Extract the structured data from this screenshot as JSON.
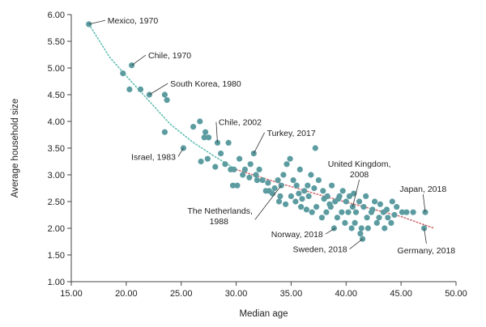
{
  "chart_data": {
    "type": "scatter",
    "title": "",
    "xlabel": "Median age",
    "ylabel": "Average household size",
    "xlim": [
      15,
      50
    ],
    "ylim": [
      1,
      6
    ],
    "x_ticks": [
      "15.00",
      "20.00",
      "25.00",
      "30.00",
      "35.00",
      "40.00",
      "45.00",
      "50.00"
    ],
    "y_ticks": [
      "1.00",
      "1.50",
      "2.00",
      "2.50",
      "3.00",
      "3.50",
      "4.00",
      "4.50",
      "5.00",
      "5.50",
      "6.00"
    ],
    "grid": false,
    "colors": {
      "point": "#5c9ca1",
      "trend_early": "#5bbcae",
      "trend_late": "#d0666b",
      "axis": "#444444",
      "annotation_line": "#333333"
    },
    "trendlines": [
      {
        "style": "dotted",
        "color": "#5bbcae",
        "points": [
          [
            16.6,
            5.82
          ],
          [
            18.5,
            5.2
          ],
          [
            20,
            4.85
          ],
          [
            22,
            4.4
          ],
          [
            24,
            3.95
          ],
          [
            26,
            3.62
          ],
          [
            28,
            3.35
          ],
          [
            30,
            3.1
          ]
        ]
      },
      {
        "style": "dotted",
        "color": "#d0666b",
        "points": [
          [
            30,
            3.1
          ],
          [
            34,
            2.84
          ],
          [
            38,
            2.6
          ],
          [
            42,
            2.38
          ],
          [
            45,
            2.22
          ],
          [
            48,
            2.0
          ]
        ]
      }
    ],
    "points": [
      [
        16.6,
        5.82
      ],
      [
        19.7,
        4.9
      ],
      [
        20.5,
        5.05
      ],
      [
        20.3,
        4.6
      ],
      [
        21.3,
        4.6
      ],
      [
        22.1,
        4.5
      ],
      [
        23.5,
        4.5
      ],
      [
        23.7,
        4.4
      ],
      [
        23.5,
        3.8
      ],
      [
        25.2,
        3.5
      ],
      [
        26.1,
        3.9
      ],
      [
        26.7,
        4.0
      ],
      [
        27.2,
        3.8
      ],
      [
        27.5,
        3.7
      ],
      [
        28.3,
        3.6
      ],
      [
        27.1,
        3.7
      ],
      [
        26.8,
        3.25
      ],
      [
        27.4,
        3.3
      ],
      [
        28.1,
        3.15
      ],
      [
        28.6,
        3.4
      ],
      [
        29.0,
        3.2
      ],
      [
        29.5,
        3.1
      ],
      [
        29.8,
        3.1
      ],
      [
        29.3,
        3.6
      ],
      [
        30.3,
        3.3
      ],
      [
        30.6,
        3.0
      ],
      [
        29.7,
        2.8
      ],
      [
        30.1,
        2.8
      ],
      [
        31.3,
        3.2
      ],
      [
        31.6,
        3.4
      ],
      [
        31.8,
        3.0
      ],
      [
        32.1,
        3.1
      ],
      [
        32.4,
        2.9
      ],
      [
        32.7,
        2.7
      ],
      [
        33.0,
        2.7
      ],
      [
        33.3,
        2.65
      ],
      [
        33.8,
        2.9
      ],
      [
        34.1,
        2.8
      ],
      [
        34.3,
        3.0
      ],
      [
        34.6,
        3.2
      ],
      [
        34.9,
        3.3
      ],
      [
        35.2,
        2.9
      ],
      [
        35.5,
        2.8
      ],
      [
        35.8,
        3.1
      ],
      [
        36.2,
        2.7
      ],
      [
        36.5,
        2.8
      ],
      [
        36.8,
        3.0
      ],
      [
        37.2,
        3.5
      ],
      [
        37.5,
        2.9
      ],
      [
        37.9,
        2.7
      ],
      [
        38.3,
        2.6
      ],
      [
        38.7,
        2.8
      ],
      [
        39.0,
        2.5
      ],
      [
        39.4,
        2.6
      ],
      [
        39.7,
        2.7
      ],
      [
        40.0,
        2.5
      ],
      [
        40.3,
        2.6
      ],
      [
        40.6,
        2.4
      ],
      [
        40.9,
        2.3
      ],
      [
        41.2,
        2.5
      ],
      [
        41.6,
        2.4
      ],
      [
        41.9,
        2.2
      ],
      [
        42.3,
        2.3
      ],
      [
        42.6,
        2.5
      ],
      [
        43.0,
        2.2
      ],
      [
        43.4,
        2.3
      ],
      [
        43.8,
        2.2
      ],
      [
        44.2,
        2.5
      ],
      [
        44.6,
        2.4
      ],
      [
        45.1,
        2.3
      ],
      [
        33.9,
        2.5
      ],
      [
        34.5,
        2.45
      ],
      [
        35.4,
        2.5
      ],
      [
        35.9,
        2.4
      ],
      [
        36.4,
        2.35
      ],
      [
        36.9,
        2.3
      ],
      [
        37.3,
        2.4
      ],
      [
        37.8,
        2.2
      ],
      [
        38.2,
        2.3
      ],
      [
        38.6,
        2.4
      ],
      [
        39.2,
        2.2
      ],
      [
        39.6,
        2.3
      ],
      [
        40.2,
        2.3
      ],
      [
        40.8,
        2.1
      ],
      [
        41.4,
        2.0
      ],
      [
        41.5,
        1.8
      ],
      [
        41.3,
        1.9
      ],
      [
        40.5,
        2.0
      ],
      [
        39.9,
        2.1
      ],
      [
        42.0,
        2.0
      ],
      [
        42.8,
        2.1
      ],
      [
        43.5,
        2.0
      ],
      [
        44.1,
        2.1
      ],
      [
        38.9,
        2.0
      ],
      [
        36.6,
        2.6
      ],
      [
        37.1,
        2.75
      ],
      [
        38.0,
        2.55
      ],
      [
        38.5,
        2.45
      ],
      [
        39.3,
        2.55
      ],
      [
        40.7,
        2.65
      ],
      [
        41.8,
        2.6
      ],
      [
        42.4,
        2.35
      ],
      [
        43.1,
        2.45
      ],
      [
        43.7,
        2.35
      ],
      [
        44.4,
        2.25
      ],
      [
        45.5,
        2.3
      ],
      [
        46.1,
        2.3
      ],
      [
        47.2,
        2.3
      ],
      [
        47.1,
        2.0
      ],
      [
        35.0,
        2.6
      ],
      [
        35.7,
        2.65
      ],
      [
        36.0,
        2.55
      ],
      [
        34.0,
        2.6
      ],
      [
        33.5,
        2.75
      ],
      [
        32.9,
        2.85
      ],
      [
        31.9,
        2.9
      ],
      [
        31.2,
        2.95
      ],
      [
        30.8,
        3.1
      ]
    ],
    "annotations": [
      {
        "text": "Mexico, 1970",
        "point": [
          16.6,
          5.82
        ],
        "label_at": [
          18.3,
          5.83
        ],
        "anchor": "start"
      },
      {
        "text": "Chile, 1970",
        "point": [
          20.5,
          5.05
        ],
        "label_at": [
          22.0,
          5.18
        ],
        "anchor": "start"
      },
      {
        "text": "South Korea, 1980",
        "point": [
          22.1,
          4.5
        ],
        "label_at": [
          24.0,
          4.65
        ],
        "anchor": "start"
      },
      {
        "text": "Israel, 1983",
        "point": [
          25.2,
          3.5
        ],
        "label_at": [
          24.5,
          3.28
        ],
        "anchor": "end"
      },
      {
        "text": "Chile, 2002",
        "point": [
          28.3,
          3.6
        ],
        "label_at": [
          28.4,
          3.93
        ],
        "anchor": "start"
      },
      {
        "text": "Turkey, 2017",
        "point": [
          31.6,
          3.4
        ],
        "label_at": [
          32.8,
          3.73
        ],
        "anchor": "start"
      },
      {
        "text": "United Kingdom,",
        "text2": "2008",
        "point": [
          40.6,
          2.4
        ],
        "label_at": [
          41.2,
          3.15
        ],
        "anchor": "middle"
      },
      {
        "text": "Japan, 2018",
        "point": [
          47.2,
          2.3
        ],
        "label_at": [
          47.0,
          2.68
        ],
        "anchor": "middle"
      },
      {
        "text": "The Netherlands,",
        "text2": "1988",
        "point": [
          34.1,
          2.8
        ],
        "label_at": [
          31.5,
          2.27
        ],
        "anchor": "end"
      },
      {
        "text": "Norway, 2018",
        "point": [
          39.0,
          2.0
        ],
        "label_at": [
          37.9,
          1.83
        ],
        "anchor": "end"
      },
      {
        "text": "Sweden, 2018",
        "point": [
          41.5,
          1.8
        ],
        "label_at": [
          40.1,
          1.55
        ],
        "anchor": "end"
      },
      {
        "text": "Germany, 2018",
        "point": [
          47.1,
          2.0
        ],
        "label_at": [
          47.3,
          1.53
        ],
        "anchor": "middle"
      }
    ]
  }
}
